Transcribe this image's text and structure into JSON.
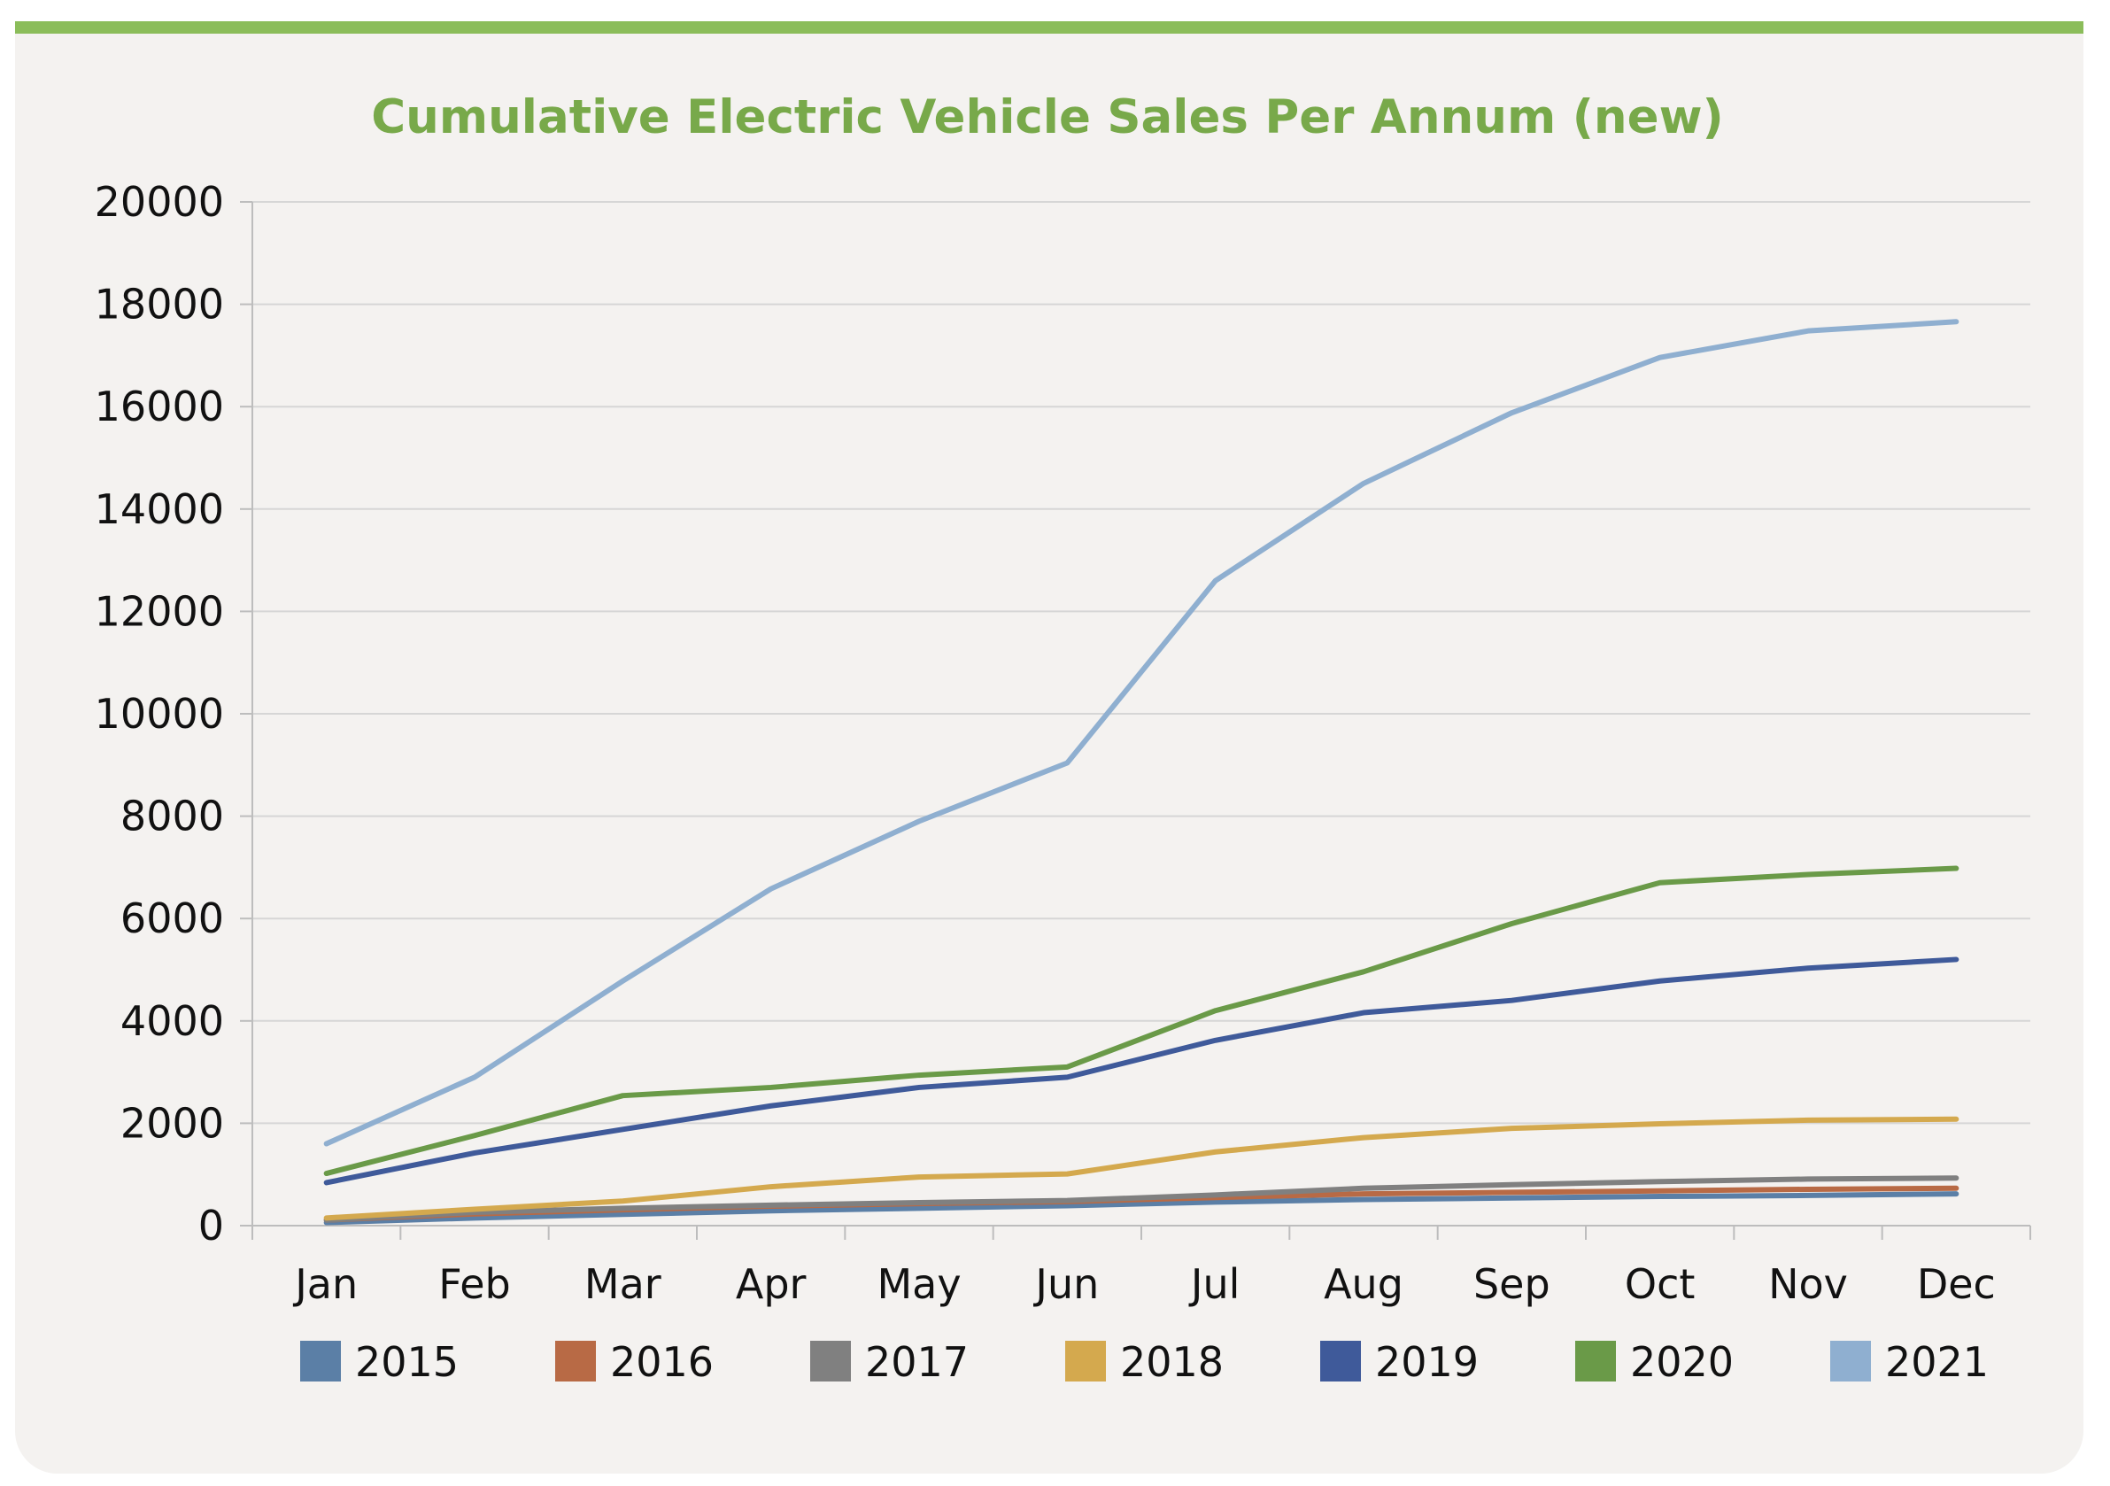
{
  "chart_data": {
    "type": "line",
    "title": "Cumulative Electric Vehicle Sales Per Annum (new)",
    "xlabel": "",
    "ylabel": "",
    "categories": [
      "Jan",
      "Feb",
      "Mar",
      "Apr",
      "May",
      "Jun",
      "Jul",
      "Aug",
      "Sep",
      "Oct",
      "Nov",
      "Dec"
    ],
    "ylim": [
      0,
      20000
    ],
    "yticks": [
      "0",
      "2000",
      "4000",
      "6000",
      "8000",
      "10000",
      "12000",
      "14000",
      "16000",
      "18000",
      "20000"
    ],
    "grid": true,
    "legend_position": "bottom",
    "series": [
      {
        "name": "2015",
        "color": "#5b7fa6",
        "values": [
          60,
          150,
          220,
          290,
          340,
          390,
          460,
          510,
          540,
          570,
          590,
          620
        ]
      },
      {
        "name": "2016",
        "color": "#b86a45",
        "values": [
          110,
          230,
          310,
          380,
          430,
          470,
          550,
          620,
          650,
          680,
          710,
          730
        ]
      },
      {
        "name": "2017",
        "color": "#808080",
        "values": [
          110,
          260,
          340,
          400,
          450,
          490,
          600,
          730,
          800,
          860,
          910,
          930
        ]
      },
      {
        "name": "2018",
        "color": "#d4a94e",
        "values": [
          150,
          320,
          480,
          760,
          950,
          1010,
          1440,
          1720,
          1900,
          1990,
          2060,
          2080
        ]
      },
      {
        "name": "2019",
        "color": "#3f5a9a",
        "values": [
          840,
          1420,
          1880,
          2340,
          2700,
          2900,
          3620,
          4160,
          4400,
          4780,
          5030,
          5200
        ]
      },
      {
        "name": "2020",
        "color": "#6a9a48",
        "values": [
          1020,
          1760,
          2540,
          2700,
          2940,
          3100,
          4200,
          4960,
          5900,
          6700,
          6860,
          6980
        ]
      },
      {
        "name": "2021",
        "color": "#8fafd0",
        "values": [
          1600,
          2900,
          4780,
          6580,
          7900,
          9040,
          12600,
          14500,
          15880,
          16960,
          17480,
          17660
        ]
      }
    ]
  }
}
